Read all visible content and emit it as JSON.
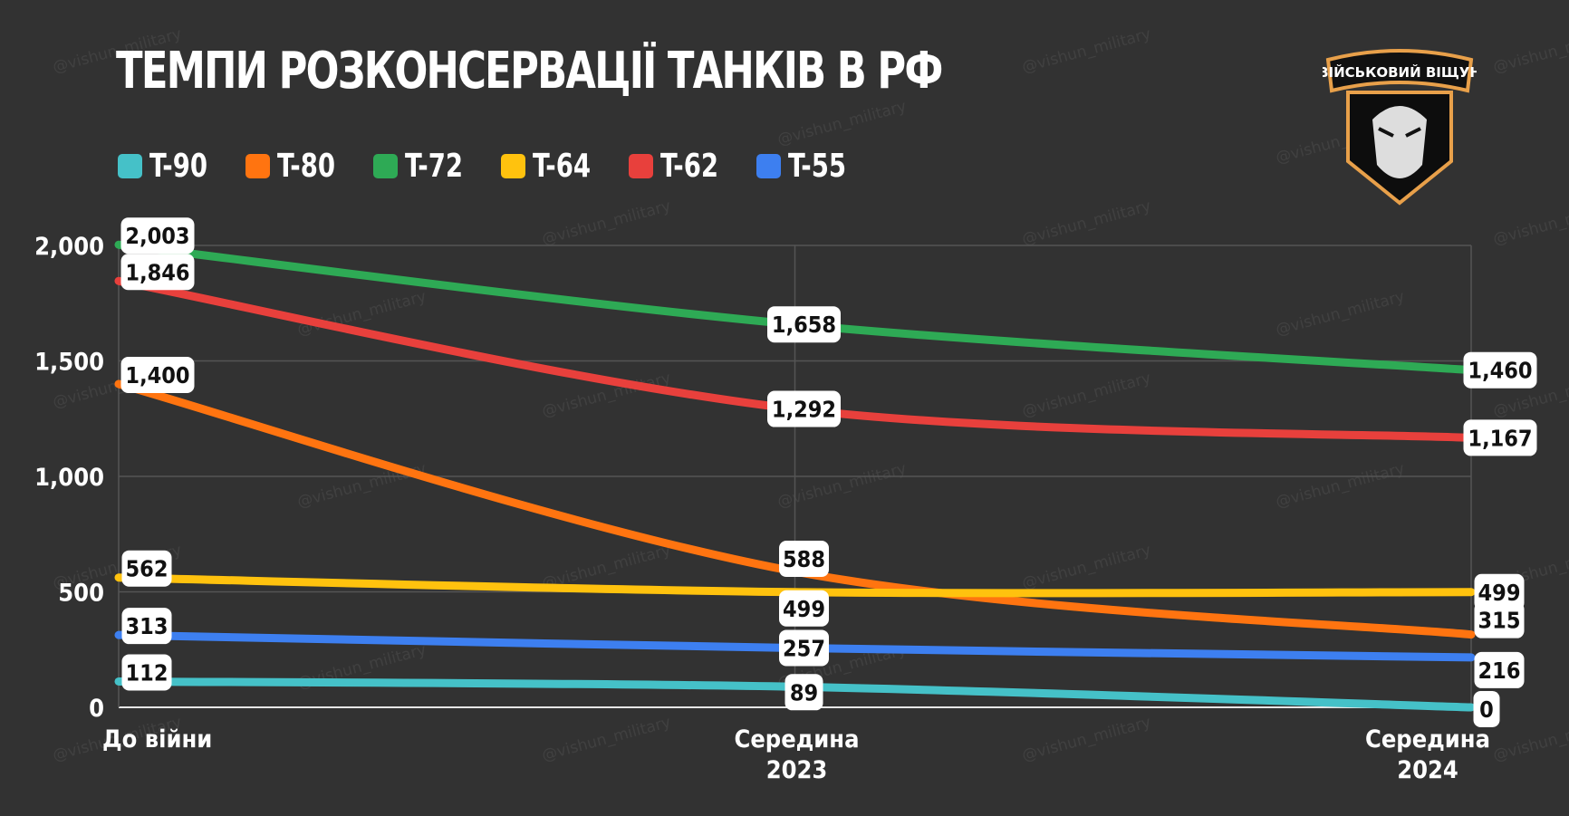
{
  "watermark": "@vishun_military",
  "logo_text": "ВІЙСЬКОВИЙ ВІЩУН",
  "chart_data": {
    "type": "line",
    "title": "ТЕМПИ РОЗКОНСЕРВАЦІЇ ТАНКІВ В РФ",
    "categories": [
      "До війни",
      "Середина 2023",
      "Середина 2024"
    ],
    "category_lines": [
      [
        "До війни"
      ],
      [
        "Середина",
        "2023"
      ],
      [
        "Середина",
        "2024"
      ]
    ],
    "ylim": [
      0,
      2000
    ],
    "yticks": [
      0,
      500,
      1000,
      1500,
      2000
    ],
    "ytick_labels": [
      "0",
      "500",
      "1,000",
      "1,500",
      "2,000"
    ],
    "grid": true,
    "legend_position": "top-left",
    "series": [
      {
        "name": "T-90",
        "color": "#45c1c8",
        "values": [
          112,
          89,
          0
        ],
        "labels": [
          "112",
          "89",
          "0"
        ]
      },
      {
        "name": "T-80",
        "color": "#ff7410",
        "values": [
          1400,
          588,
          315
        ],
        "labels": [
          "1,400",
          "588",
          "315"
        ]
      },
      {
        "name": "T-72",
        "color": "#2eaa55",
        "values": [
          2003,
          1658,
          1460
        ],
        "labels": [
          "2,003",
          "1,658",
          "1,460"
        ]
      },
      {
        "name": "T-64",
        "color": "#ffc20e",
        "values": [
          562,
          499,
          499
        ],
        "labels": [
          "562",
          "499",
          "499"
        ]
      },
      {
        "name": "T-62",
        "color": "#e8403c",
        "values": [
          1846,
          1292,
          1167
        ],
        "labels": [
          "1,846",
          "1,292",
          "1,167"
        ]
      },
      {
        "name": "T-55",
        "color": "#3d7ff0",
        "values": [
          313,
          257,
          216
        ],
        "labels": [
          "313",
          "257",
          "216"
        ]
      }
    ]
  }
}
